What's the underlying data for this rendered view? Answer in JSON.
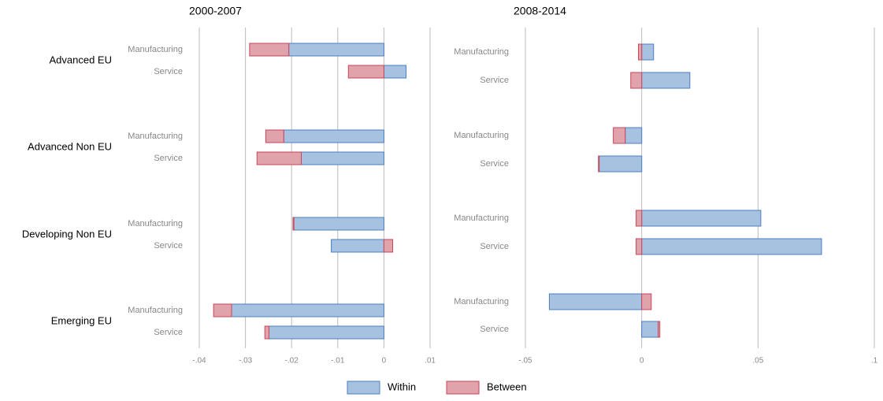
{
  "chart_data": [
    {
      "type": "bar",
      "title": "2000-2007",
      "groups": [
        "Advanced EU",
        "Advanced Non EU",
        "Developing Non EU",
        "Emerging EU"
      ],
      "categories": [
        "Manufacturing",
        "Service",
        "Manufacturing",
        "Service",
        "Manufacturing",
        "Service",
        "Manufacturing",
        "Service"
      ],
      "series": [
        {
          "name": "Within",
          "color": "#a7c1e0",
          "values": [
            -0.0206,
            0.0048,
            -0.0217,
            -0.0179,
            -0.0195,
            -0.0114,
            -0.033,
            -0.0249
          ]
        },
        {
          "name": "Between",
          "color": "#e0a3ab",
          "values": [
            -0.0085,
            -0.0077,
            -0.0039,
            -0.0096,
            -0.0002,
            0.0019,
            -0.0039,
            -0.0009
          ]
        }
      ],
      "xlim": [
        -0.04,
        0.01
      ],
      "xticks": [
        {
          "value": -0.04,
          "label": "-.04"
        },
        {
          "value": -0.03,
          "label": "-.03"
        },
        {
          "value": -0.02,
          "label": "-.02"
        },
        {
          "value": -0.01,
          "label": "-.01"
        },
        0,
        {
          "value": 0.01,
          "label": ".01"
        }
      ],
      "grid": true
    },
    {
      "type": "bar",
      "title": "2008-2014",
      "categories": [
        "Manufacturing",
        "Service",
        "Manufacturing",
        "Service",
        "Manufacturing",
        "Service",
        "Manufacturing",
        "Service"
      ],
      "series": [
        {
          "name": "Within",
          "color": "#a7c1e0",
          "values": [
            0.0051,
            0.0207,
            -0.0071,
            -0.0183,
            0.0512,
            0.0773,
            -0.0397,
            0.0071
          ]
        },
        {
          "name": "Between",
          "color": "#e0a3ab",
          "values": [
            -0.0014,
            -0.0047,
            -0.0051,
            -0.0003,
            -0.0024,
            -0.0024,
            0.0041,
            0.0007
          ]
        }
      ],
      "xlim": [
        -0.05,
        0.1
      ],
      "xticks": [
        {
          "value": -0.05,
          "label": "-.05"
        },
        0,
        {
          "value": 0.05,
          "label": ".05"
        },
        {
          "value": 0.1,
          "label": ".1"
        }
      ],
      "grid": true
    }
  ]
}
